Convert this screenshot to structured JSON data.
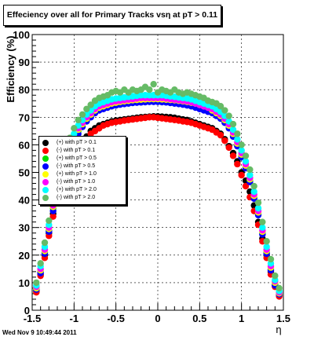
{
  "title": "Effeciency over all for Primary Tracks vsη at pT > 0.11",
  "footer": "Wed Nov  9 10:49:44 2011",
  "chart_data": {
    "type": "scatter",
    "title": "Effeciency over all for Primary Tracks vsη at pT > 0.11",
    "xlabel": "η",
    "ylabel": "Efficiency (%)",
    "xlim": [
      -1.5,
      1.5
    ],
    "ylim": [
      0,
      100
    ],
    "xticks": [
      -1.5,
      -1,
      -0.5,
      0,
      0.5,
      1,
      1.5
    ],
    "xtick_labels": [
      "-1.5",
      "-1",
      "-0.5",
      "0",
      "0.5",
      "1",
      "1.5"
    ],
    "yticks": [
      0,
      10,
      20,
      30,
      40,
      50,
      60,
      70,
      80,
      90,
      100
    ],
    "ytick_labels": [
      "0",
      "10",
      "20",
      "30",
      "40",
      "50",
      "60",
      "70",
      "80",
      "90",
      "100"
    ],
    "grid": true,
    "legend_position": "left-middle",
    "x": [
      -1.45,
      -1.4,
      -1.35,
      -1.3,
      -1.25,
      -1.2,
      -1.15,
      -1.1,
      -1.05,
      -1.0,
      -0.95,
      -0.9,
      -0.85,
      -0.8,
      -0.75,
      -0.7,
      -0.65,
      -0.6,
      -0.55,
      -0.5,
      -0.45,
      -0.4,
      -0.35,
      -0.3,
      -0.25,
      -0.2,
      -0.15,
      -0.1,
      -0.05,
      0.0,
      0.05,
      0.1,
      0.15,
      0.2,
      0.25,
      0.3,
      0.35,
      0.4,
      0.45,
      0.5,
      0.55,
      0.6,
      0.65,
      0.7,
      0.75,
      0.8,
      0.85,
      0.9,
      0.95,
      1.0,
      1.05,
      1.1,
      1.15,
      1.2,
      1.25,
      1.3,
      1.35,
      1.4,
      1.45
    ],
    "series": [
      {
        "name": "(+) with pT > 0.1",
        "color": "#000000",
        "values": [
          7,
          13,
          20,
          28,
          35,
          41,
          46,
          50,
          53,
          56,
          59,
          61,
          63,
          65,
          66,
          67,
          67.5,
          68,
          68.5,
          68.8,
          69,
          69.2,
          69.4,
          69.6,
          69.8,
          70,
          70.1,
          70.2,
          70.3,
          70.3,
          70.2,
          70.1,
          70,
          69.8,
          69.5,
          69.2,
          69,
          68.5,
          68,
          67.5,
          67,
          66.5,
          66,
          65,
          64,
          62,
          59.5,
          57,
          54,
          50,
          47,
          43,
          38,
          32,
          26,
          20,
          14,
          9,
          5.5
        ]
      },
      {
        "name": "(-) with pT > 0.1",
        "color": "#ff0000",
        "values": [
          6.5,
          12.5,
          19,
          27,
          34,
          40,
          45,
          49,
          52,
          55,
          58,
          60,
          62,
          64,
          65,
          66,
          67,
          67.5,
          68,
          68.3,
          68.5,
          68.8,
          69,
          69.2,
          69.4,
          69.6,
          69.8,
          70,
          70,
          69.8,
          69.6,
          69.4,
          69.2,
          69,
          68.8,
          68.5,
          68.3,
          68,
          67.5,
          67,
          66.5,
          66,
          65.5,
          64.5,
          63.5,
          61.5,
          59,
          56,
          53,
          49,
          45,
          41,
          36,
          31,
          25,
          19,
          13,
          8.5,
          5
        ]
      },
      {
        "name": "(+) with pT > 0.5",
        "color": "#00dd00",
        "values": [
          8,
          14,
          21,
          29,
          37,
          43,
          49,
          54,
          58,
          62,
          65,
          67,
          69,
          70.5,
          72,
          73,
          73.5,
          74,
          74.5,
          75,
          75.2,
          75.4,
          75.6,
          75.8,
          76,
          76,
          76.1,
          76.2,
          76.3,
          76.3,
          76.2,
          76.1,
          76,
          75.8,
          75.6,
          75.4,
          75.2,
          75,
          74.5,
          74,
          73.5,
          73,
          72,
          71,
          70,
          68.5,
          66.5,
          63.5,
          60,
          56,
          52,
          47,
          41,
          35,
          28,
          21,
          15,
          9.5,
          6
        ]
      },
      {
        "name": "(-) with pT > 0.5",
        "color": "#0000ff",
        "values": [
          7.5,
          13.5,
          20.5,
          28.5,
          36,
          42,
          48,
          53,
          57,
          61,
          64,
          66.5,
          68.5,
          70,
          71.5,
          72.5,
          73,
          73.5,
          74,
          74.3,
          74.6,
          74.8,
          75,
          75.2,
          75.3,
          75.4,
          75.5,
          75.6,
          75.6,
          75.6,
          75.5,
          75.4,
          75.2,
          75,
          74.8,
          74.6,
          74.3,
          74,
          73.5,
          73,
          72.5,
          72,
          71.5,
          70.5,
          69.5,
          68,
          66,
          63,
          59.5,
          55.5,
          51.5,
          46.5,
          40.5,
          34.5,
          27.5,
          20.5,
          14.5,
          9,
          5.8
        ]
      },
      {
        "name": "(+) with pT > 1.0",
        "color": "#ffff00",
        "values": [
          8,
          14.5,
          21.5,
          29.5,
          37.5,
          43.5,
          49.5,
          54.5,
          58.5,
          62.5,
          65.5,
          67.5,
          69.5,
          71,
          72.5,
          73.5,
          74,
          74.5,
          75,
          75.3,
          75.6,
          75.8,
          76,
          76.2,
          76.3,
          76.4,
          76.5,
          76.6,
          76.6,
          76.6,
          76.5,
          76.4,
          76.3,
          76.2,
          76,
          75.8,
          75.6,
          75.3,
          75,
          74.5,
          74,
          73.5,
          72.5,
          71.5,
          70.5,
          69,
          67,
          64,
          60.5,
          56.5,
          52.5,
          47.5,
          41.5,
          35.5,
          28.5,
          21.5,
          15.5,
          10,
          6.2
        ]
      },
      {
        "name": "(-) with pT > 1.0",
        "color": "#ff00ff",
        "values": [
          8.5,
          15,
          22,
          30,
          38,
          44,
          50,
          55,
          59,
          63,
          66,
          68,
          70,
          71.5,
          73,
          74,
          74.5,
          75,
          75.5,
          75.8,
          76,
          76.2,
          76.4,
          76.6,
          76.8,
          77,
          77,
          77,
          77,
          77,
          77,
          76.8,
          76.6,
          76.4,
          76.2,
          76,
          75.8,
          75.5,
          75,
          74.5,
          74,
          73.5,
          73,
          72,
          71,
          69.5,
          67.5,
          64.5,
          61,
          57,
          53,
          48,
          42,
          36,
          29,
          22,
          16,
          10.5,
          6.5
        ]
      },
      {
        "name": "(+) with pT > 2.0",
        "color": "#00ffff",
        "values": [
          9,
          16,
          23,
          31,
          39,
          45,
          51,
          56,
          60,
          64,
          67,
          69,
          71,
          72.5,
          74,
          75,
          75.5,
          76,
          76.5,
          76.8,
          77,
          77.2,
          77.4,
          77.6,
          77.8,
          78,
          78,
          78,
          78,
          78,
          78,
          77.8,
          77.6,
          77.4,
          77.2,
          77,
          76.8,
          76.5,
          76,
          75.5,
          75,
          74.5,
          74,
          73,
          72,
          70.5,
          68.5,
          65.5,
          62,
          58,
          54,
          49,
          43,
          37,
          30,
          23,
          17,
          11,
          7
        ]
      },
      {
        "name": "(-) with pT > 2.0",
        "color": "#66bb66",
        "values": [
          10,
          17,
          24.5,
          32.5,
          40.5,
          46.5,
          53,
          58,
          62.5,
          66,
          69,
          71,
          73,
          74.5,
          76,
          77,
          77.5,
          78,
          79,
          79.5,
          79,
          80,
          79,
          80,
          79.5,
          80,
          81,
          80,
          82,
          79,
          80,
          79.5,
          79,
          80,
          79,
          78.5,
          79,
          78.5,
          78,
          77.5,
          77,
          76,
          75.5,
          75,
          74,
          72.5,
          70.5,
          67.5,
          64,
          60,
          56,
          51,
          45,
          39,
          32,
          25,
          18.5,
          12.5,
          8
        ]
      }
    ]
  }
}
